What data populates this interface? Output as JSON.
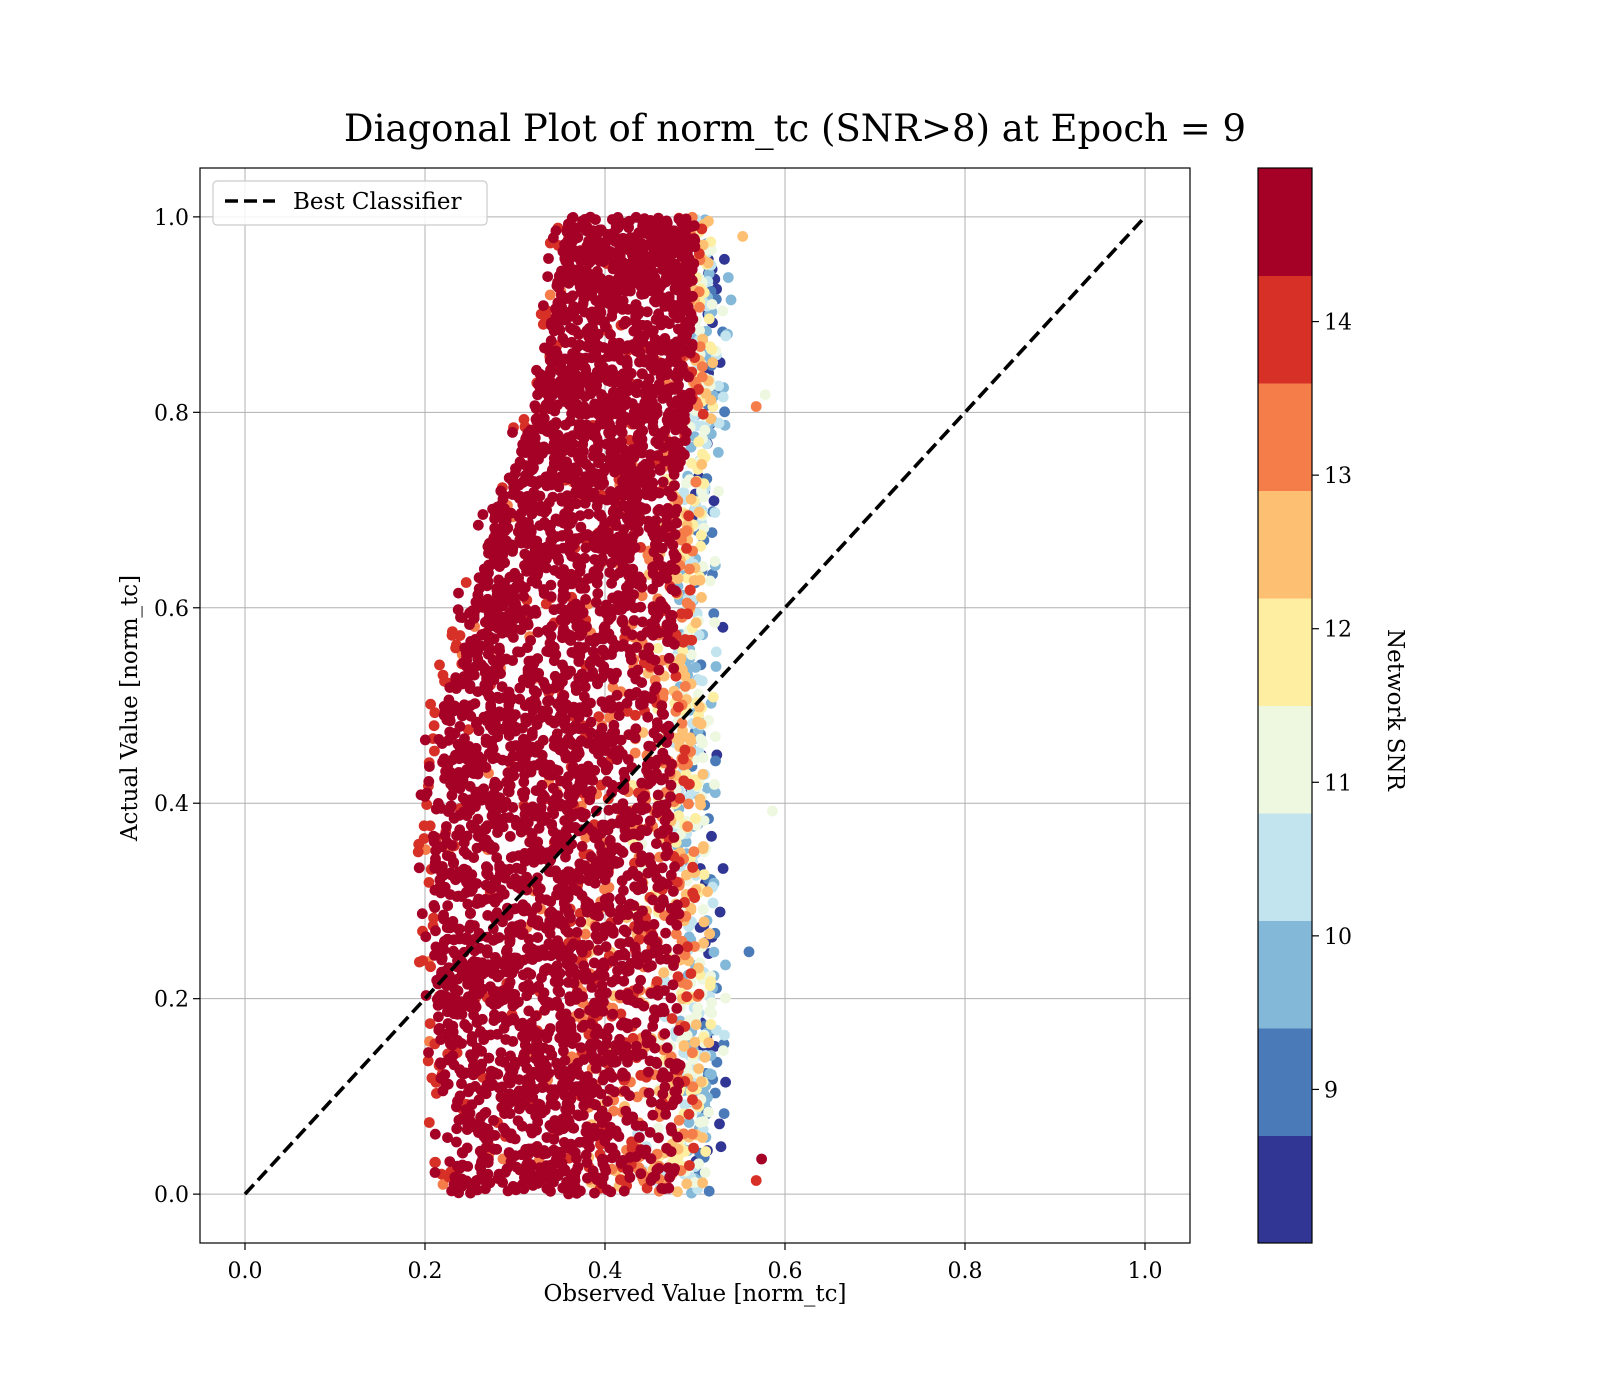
{
  "chart_data": {
    "type": "scatter",
    "title": "Diagonal Plot of norm_tc (SNR>8) at Epoch = 9",
    "xlabel": "Observed Value [norm_tc]",
    "ylabel": "Actual Value [norm_tc]",
    "xlim": [
      -0.05,
      1.05
    ],
    "ylim": [
      -0.05,
      1.05
    ],
    "xticks": [
      "0.0",
      "0.2",
      "0.4",
      "0.6",
      "0.8",
      "1.0"
    ],
    "yticks": [
      "0.0",
      "0.2",
      "0.4",
      "0.6",
      "0.8",
      "1.0"
    ],
    "grid": true,
    "legend": {
      "location": "upper-left",
      "entries": [
        {
          "label": "Best Classifier",
          "style": "dashed",
          "color": "#000000"
        }
      ]
    },
    "reference_line": {
      "label": "Best Classifier",
      "x": [
        0,
        1
      ],
      "y": [
        0,
        1
      ]
    },
    "colorbar": {
      "label": "Network SNR",
      "range": [
        8,
        15
      ],
      "ticks": [
        "9",
        "10",
        "11",
        "12",
        "13",
        "14"
      ],
      "colors": [
        "#313695",
        "#4a7ab7",
        "#84b8d8",
        "#c2e4ef",
        "#eef7e0",
        "#feeea2",
        "#fdbf71",
        "#f57d4a",
        "#d73027",
        "#a50026"
      ]
    },
    "distribution": {
      "y_levels": [
        0.0,
        0.1,
        0.2,
        0.3,
        0.4,
        0.5,
        0.6,
        0.7,
        0.8,
        0.9,
        1.0
      ],
      "x_left_edge": [
        0.23,
        0.22,
        0.21,
        0.21,
        0.21,
        0.22,
        0.25,
        0.28,
        0.32,
        0.34,
        0.36
      ],
      "x_right_edge": [
        0.51,
        0.52,
        0.52,
        0.52,
        0.51,
        0.51,
        0.51,
        0.51,
        0.52,
        0.52,
        0.52
      ]
    },
    "outliers": [
      {
        "x": 0.578,
        "y": 0.818,
        "snr": 11.0
      },
      {
        "x": 0.568,
        "y": 0.806,
        "snr": 13.3
      },
      {
        "x": 0.586,
        "y": 0.392,
        "snr": 11.0
      },
      {
        "x": 0.56,
        "y": 0.248,
        "snr": 9.3
      },
      {
        "x": 0.574,
        "y": 0.036,
        "snr": 14.6
      },
      {
        "x": 0.568,
        "y": 0.014,
        "snr": 14.2
      },
      {
        "x": 0.553,
        "y": 0.98,
        "snr": 12.5
      },
      {
        "x": 0.193,
        "y": 0.358,
        "snr": 14.2
      },
      {
        "x": 0.197,
        "y": 0.287,
        "snr": 14.6
      },
      {
        "x": 0.2,
        "y": 0.407,
        "snr": 14.6
      },
      {
        "x": 0.54,
        "y": 0.915,
        "snr": 10.0
      },
      {
        "x": 0.537,
        "y": 0.938,
        "snr": 10.0
      },
      {
        "x": 0.531,
        "y": 0.58,
        "snr": 8.5
      },
      {
        "x": 0.536,
        "y": 0.88,
        "snr": 10.0
      }
    ]
  }
}
